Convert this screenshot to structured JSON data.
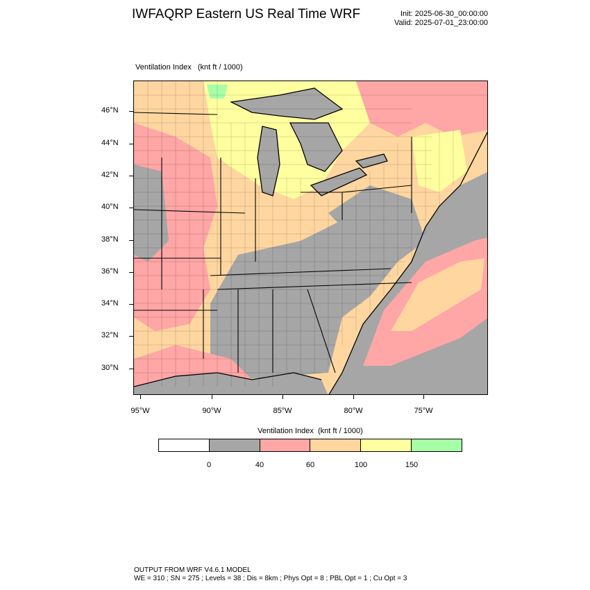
{
  "header": {
    "title": "IWFAQRP Eastern US Real Time WRF",
    "init": "Init: 2025-06-30_00:00:00",
    "valid": "Valid: 2025-07-01_23:00:00"
  },
  "map": {
    "subtitle": "Ventilation Index   (knt ft / 1000)",
    "lat_labels": [
      "46°N",
      "44°N",
      "42°N",
      "40°N",
      "38°N",
      "36°N",
      "34°N",
      "32°N",
      "30°N"
    ],
    "lon_labels": [
      "95°W",
      "90°W",
      "85°W",
      "80°W",
      "75°W"
    ],
    "colors": {
      "gray": "#a6a6a6",
      "pink": "#ffa6a6",
      "orange": "#ffd6a0",
      "yellow": "#ffff9f",
      "green": "#a6ffa6",
      "water": "#a6a6a6"
    }
  },
  "colorbar": {
    "title": "Ventilation Index  (knt ft / 1000)",
    "colors": [
      "#ffffff",
      "#a6a6a6",
      "#ffa6a6",
      "#ffd6a0",
      "#ffff9f",
      "#a6ffa6"
    ],
    "labels": [
      "0",
      "40",
      "60",
      "100",
      "150"
    ]
  },
  "footer": {
    "line1": "OUTPUT FROM WRF V4.6.1 MODEL",
    "line2": "WE = 310 ; SN = 275 ; Levels = 38 ; Dis = 8km ; Phys Opt = 8 ; PBL Opt = 1 ; Cu Opt = 3"
  }
}
